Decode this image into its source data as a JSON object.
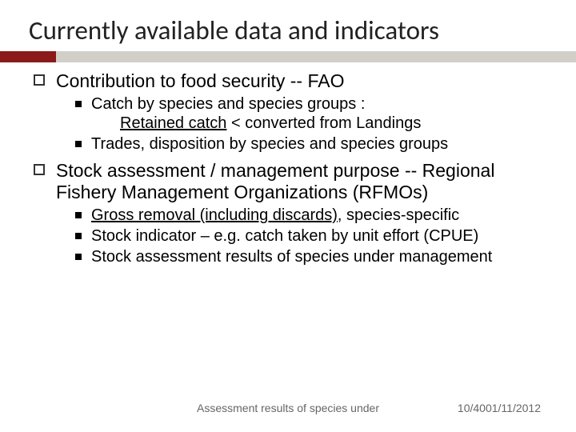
{
  "colors": {
    "accent_red": "#8b1a1a",
    "accent_gray": "#d2cfc8",
    "text": "#000000",
    "footer_text": "#666666",
    "background": "#ffffff"
  },
  "title": "Currently available data and indicators",
  "bullets": [
    {
      "text": "Contribution to food security -- FAO",
      "sub": [
        {
          "text": "Catch by species and species groups :",
          "extra_line_html": "<span class=\"underline\">Retained catch</span> < converted from Landings"
        },
        {
          "text": "Trades, disposition by species and species groups"
        }
      ]
    },
    {
      "text": "Stock assessment / management purpose -- Regional Fishery Management Organizations (RFMOs)",
      "sub": [
        {
          "html": "<span class=\"underline\">Gross removal (including discards)</span>, species-specific"
        },
        {
          "text": "Stock indicator – e.g. catch taken by unit effort (CPUE)"
        },
        {
          "text": "Stock assessment results of species under management"
        }
      ]
    }
  ],
  "footer": {
    "center": "Assessment results of species under",
    "page": "10/40",
    "date": "01/11/2012"
  }
}
